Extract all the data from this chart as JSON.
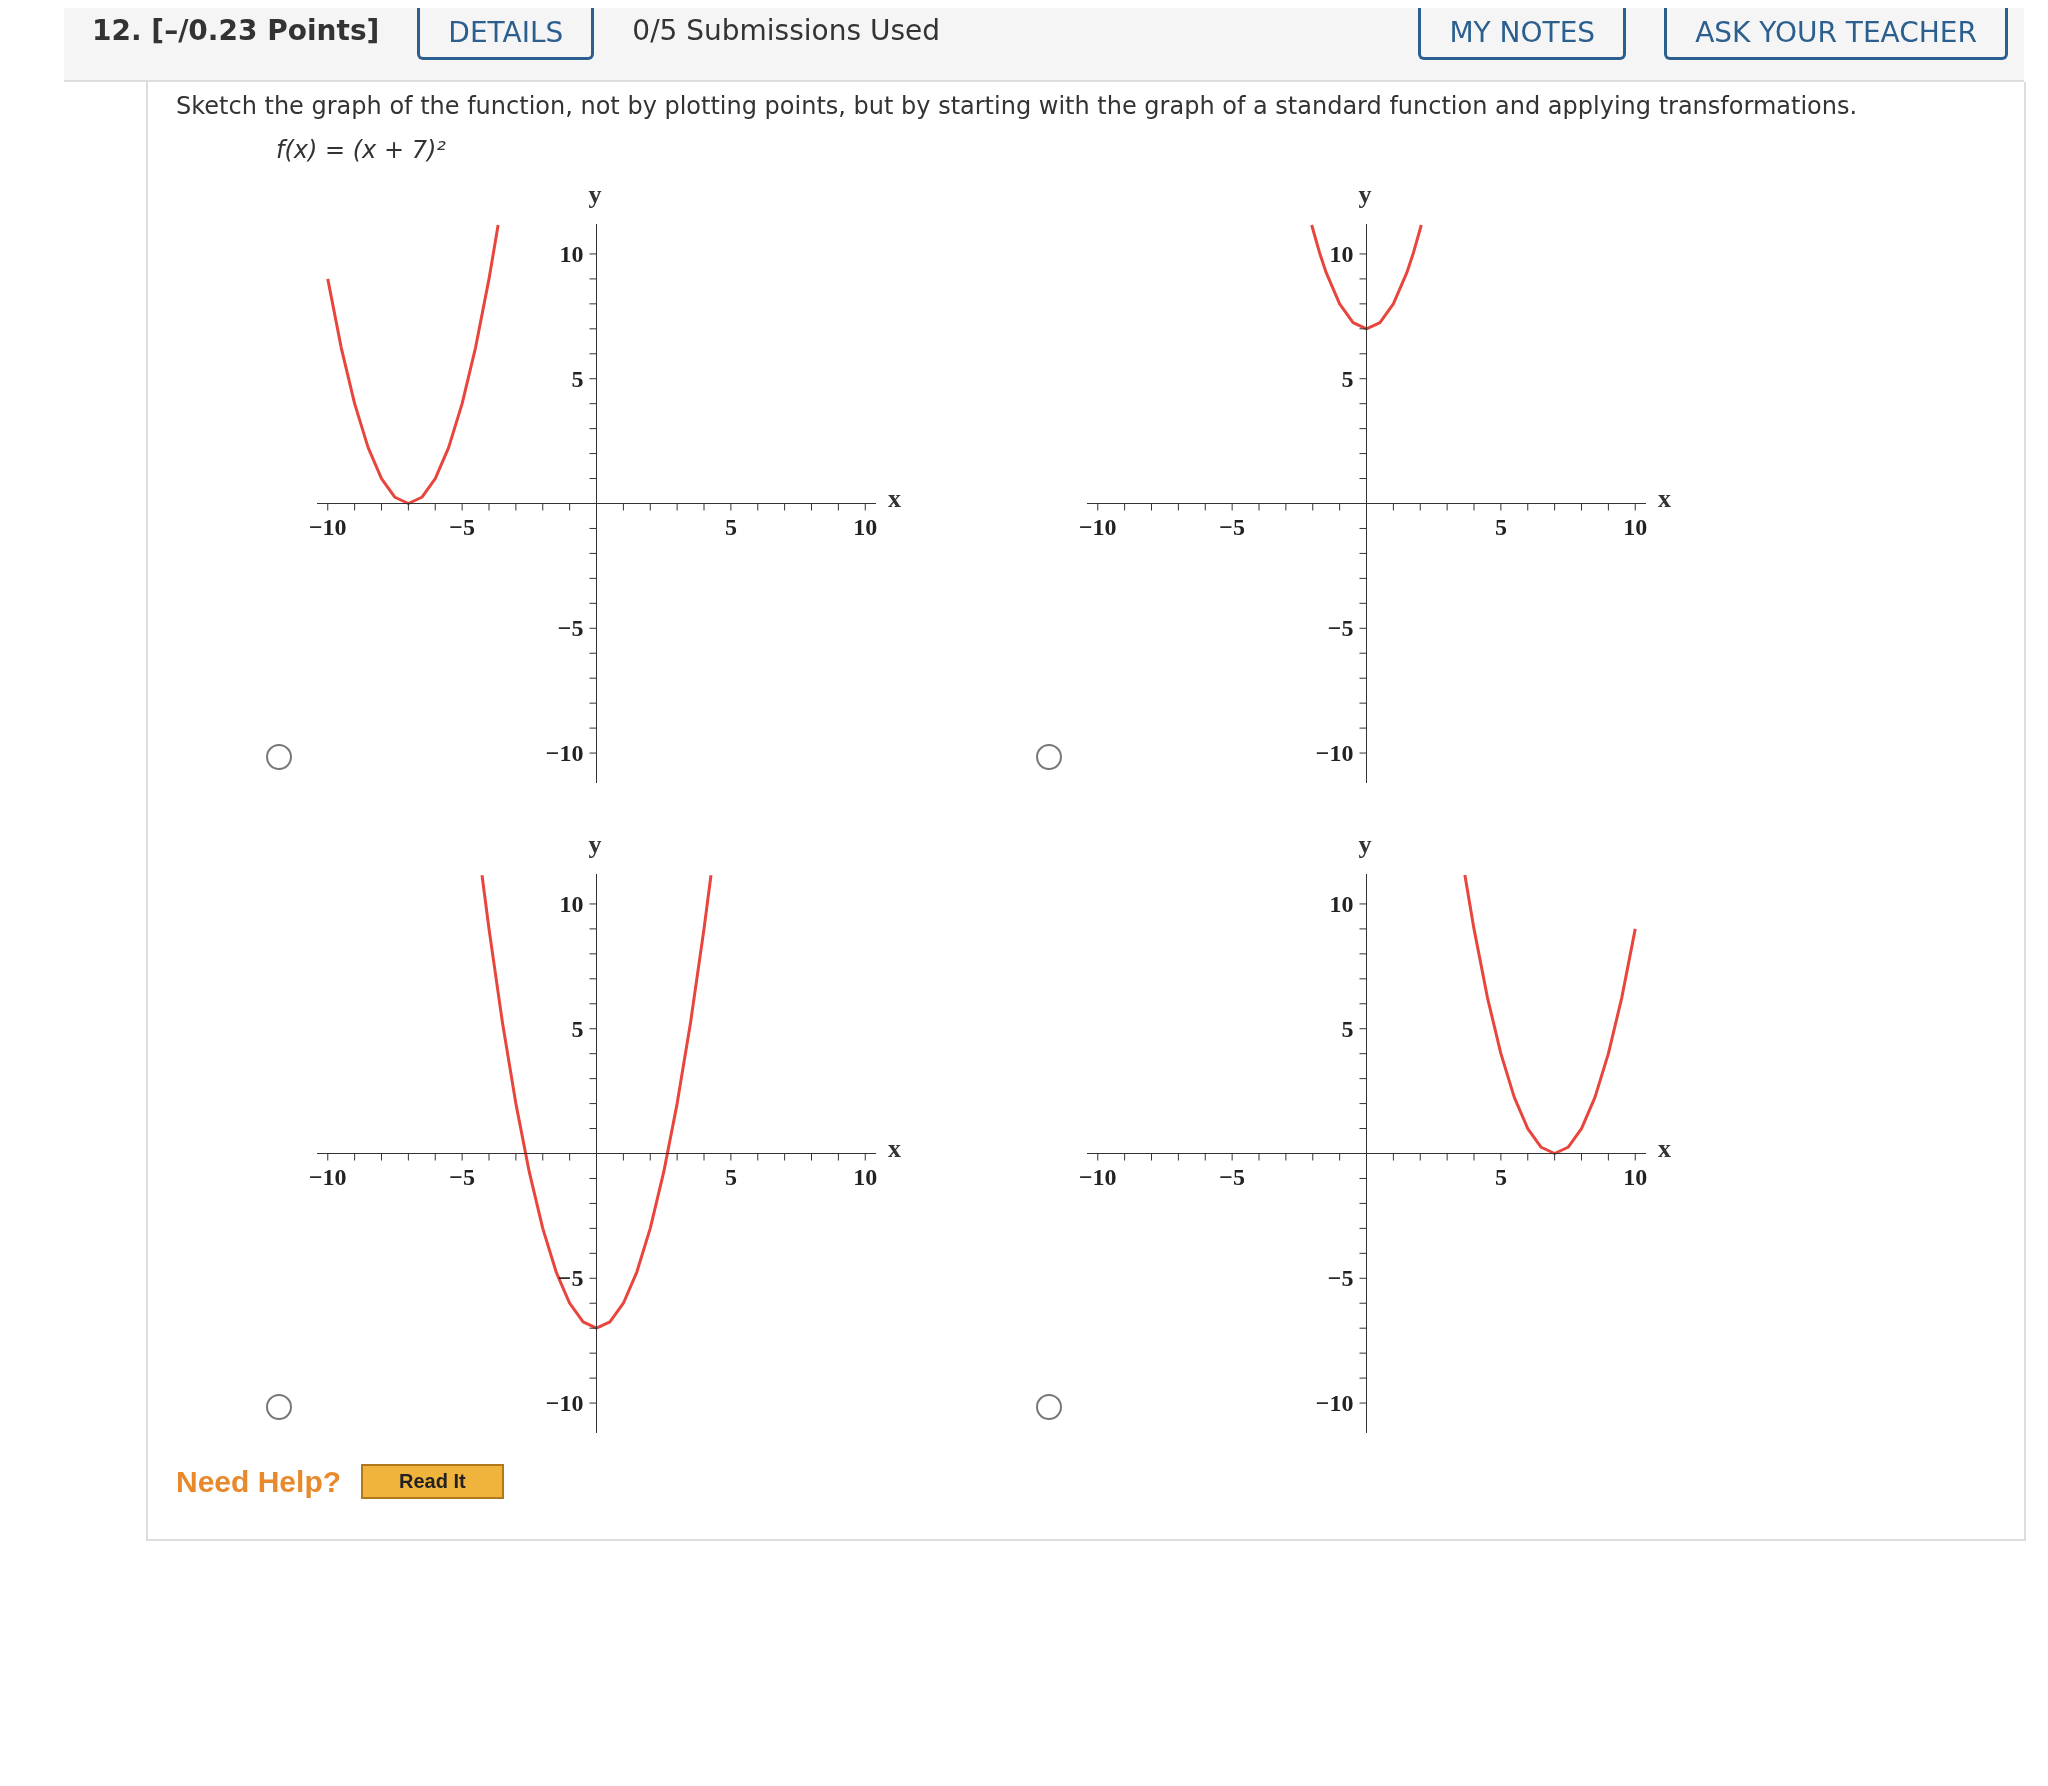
{
  "chart_data": [
    {
      "type": "line",
      "title": "Sketch the graph of the function, not by plotting points, but by starting with the graph of a standard function and applying transformations.",
      "subtitle": "f(x) = (x + 7)²",
      "annotations": [
        "12. [–/0.23 Points]",
        "DETAILS",
        "0/5 Submissions Used",
        "MY NOTES",
        "ASK YOUR TEACHER",
        "Need Help?",
        "Read It"
      ],
      "xlabel": "x",
      "ylabel": "y",
      "xlim": [
        -10.4,
        10.4
      ],
      "ylim": [
        -11.2,
        11.2
      ],
      "xticks": [
        {
          "value": -10,
          "label": "−10"
        },
        {
          "value": -9,
          "label": null
        },
        {
          "value": -8,
          "label": null
        },
        {
          "value": -7,
          "label": null
        },
        {
          "value": -6,
          "label": null
        },
        {
          "value": -5,
          "label": "−5"
        },
        {
          "value": -4,
          "label": null
        },
        {
          "value": -3,
          "label": null
        },
        {
          "value": -2,
          "label": null
        },
        {
          "value": -1,
          "label": null
        },
        {
          "value": 1,
          "label": null
        },
        {
          "value": 2,
          "label": null
        },
        {
          "value": 3,
          "label": null
        },
        {
          "value": 4,
          "label": null
        },
        {
          "value": 5,
          "label": "5"
        },
        {
          "value": 6,
          "label": null
        },
        {
          "value": 7,
          "label": null
        },
        {
          "value": 8,
          "label": null
        },
        {
          "value": 9,
          "label": null
        },
        {
          "value": 10,
          "label": "10"
        }
      ],
      "yticks": [
        {
          "value": -10,
          "label": "−10"
        },
        {
          "value": -9,
          "label": null
        },
        {
          "value": -8,
          "label": null
        },
        {
          "value": -7,
          "label": null
        },
        {
          "value": -6,
          "label": null
        },
        {
          "value": -5,
          "label": "−5"
        },
        {
          "value": -4,
          "label": null
        },
        {
          "value": -3,
          "label": null
        },
        {
          "value": -2,
          "label": null
        },
        {
          "value": -1,
          "label": null
        },
        {
          "value": 1,
          "label": null
        },
        {
          "value": 2,
          "label": null
        },
        {
          "value": 3,
          "label": null
        },
        {
          "value": 4,
          "label": null
        },
        {
          "value": 5,
          "label": "5"
        },
        {
          "value": 6,
          "label": null
        },
        {
          "value": 7,
          "label": null
        },
        {
          "value": 8,
          "label": null
        },
        {
          "value": 9,
          "label": null
        },
        {
          "value": 10,
          "label": "10"
        }
      ],
      "marker": "none",
      "series": [
        {
          "color": "#e8453c",
          "x": [
            -10,
            -9.5,
            -9,
            -8.5,
            -8,
            -7.5,
            -7,
            -6.5,
            -6,
            -5.5,
            -5,
            -4.5,
            -4,
            -3.66
          ],
          "values": [
            9,
            6.25,
            4,
            2.25,
            1,
            0.25,
            0,
            0.25,
            1,
            2.25,
            4,
            6.25,
            9,
            11.16
          ]
        }
      ]
    },
    {
      "type": "line",
      "xlabel": "x",
      "ylabel": "y",
      "xlim": [
        -10.4,
        10.4
      ],
      "ylim": [
        -11.2,
        11.2
      ],
      "xticks": [
        {
          "value": -10,
          "label": "−10"
        },
        {
          "value": -9,
          "label": null
        },
        {
          "value": -8,
          "label": null
        },
        {
          "value": -7,
          "label": null
        },
        {
          "value": -6,
          "label": null
        },
        {
          "value": -5,
          "label": "−5"
        },
        {
          "value": -4,
          "label": null
        },
        {
          "value": -3,
          "label": null
        },
        {
          "value": -2,
          "label": null
        },
        {
          "value": -1,
          "label": null
        },
        {
          "value": 1,
          "label": null
        },
        {
          "value": 2,
          "label": null
        },
        {
          "value": 3,
          "label": null
        },
        {
          "value": 4,
          "label": null
        },
        {
          "value": 5,
          "label": "5"
        },
        {
          "value": 6,
          "label": null
        },
        {
          "value": 7,
          "label": null
        },
        {
          "value": 8,
          "label": null
        },
        {
          "value": 9,
          "label": null
        },
        {
          "value": 10,
          "label": "10"
        }
      ],
      "yticks": [
        {
          "value": -10,
          "label": "−10"
        },
        {
          "value": -9,
          "label": null
        },
        {
          "value": -8,
          "label": null
        },
        {
          "value": -7,
          "label": null
        },
        {
          "value": -6,
          "label": null
        },
        {
          "value": -5,
          "label": "−5"
        },
        {
          "value": -4,
          "label": null
        },
        {
          "value": -3,
          "label": null
        },
        {
          "value": -2,
          "label": null
        },
        {
          "value": -1,
          "label": null
        },
        {
          "value": 1,
          "label": null
        },
        {
          "value": 2,
          "label": null
        },
        {
          "value": 3,
          "label": null
        },
        {
          "value": 4,
          "label": null
        },
        {
          "value": 5,
          "label": "5"
        },
        {
          "value": 6,
          "label": null
        },
        {
          "value": 7,
          "label": null
        },
        {
          "value": 8,
          "label": null
        },
        {
          "value": 9,
          "label": null
        },
        {
          "value": 10,
          "label": "10"
        }
      ],
      "marker": "none",
      "series": [
        {
          "color": "#e8453c",
          "x": [
            -2.04,
            -1.75,
            -1.5,
            -1,
            -0.5,
            0,
            0.5,
            1,
            1.5,
            1.75,
            2.04
          ],
          "values": [
            11.16,
            10.06,
            9.25,
            8,
            7.25,
            7,
            7.25,
            8,
            9.25,
            10.06,
            11.16
          ]
        }
      ]
    },
    {
      "type": "line",
      "xlabel": "x",
      "ylabel": "y",
      "xlim": [
        -10.4,
        10.4
      ],
      "ylim": [
        -11.2,
        11.2
      ],
      "xticks": [
        {
          "value": -10,
          "label": "−10"
        },
        {
          "value": -9,
          "label": null
        },
        {
          "value": -8,
          "label": null
        },
        {
          "value": -7,
          "label": null
        },
        {
          "value": -6,
          "label": null
        },
        {
          "value": -5,
          "label": "−5"
        },
        {
          "value": -4,
          "label": null
        },
        {
          "value": -3,
          "label": null
        },
        {
          "value": -2,
          "label": null
        },
        {
          "value": -1,
          "label": null
        },
        {
          "value": 1,
          "label": null
        },
        {
          "value": 2,
          "label": null
        },
        {
          "value": 3,
          "label": null
        },
        {
          "value": 4,
          "label": null
        },
        {
          "value": 5,
          "label": "5"
        },
        {
          "value": 6,
          "label": null
        },
        {
          "value": 7,
          "label": null
        },
        {
          "value": 8,
          "label": null
        },
        {
          "value": 9,
          "label": null
        },
        {
          "value": 10,
          "label": "10"
        }
      ],
      "yticks": [
        {
          "value": -10,
          "label": "−10"
        },
        {
          "value": -9,
          "label": null
        },
        {
          "value": -8,
          "label": null
        },
        {
          "value": -7,
          "label": null
        },
        {
          "value": -6,
          "label": null
        },
        {
          "value": -5,
          "label": "−5"
        },
        {
          "value": -4,
          "label": null
        },
        {
          "value": -3,
          "label": null
        },
        {
          "value": -2,
          "label": null
        },
        {
          "value": -1,
          "label": null
        },
        {
          "value": 1,
          "label": null
        },
        {
          "value": 2,
          "label": null
        },
        {
          "value": 3,
          "label": null
        },
        {
          "value": 4,
          "label": null
        },
        {
          "value": 5,
          "label": "5"
        },
        {
          "value": 6,
          "label": null
        },
        {
          "value": 7,
          "label": null
        },
        {
          "value": 8,
          "label": null
        },
        {
          "value": 9,
          "label": null
        },
        {
          "value": 10,
          "label": "10"
        }
      ],
      "marker": "none",
      "series": [
        {
          "color": "#e8453c",
          "x": [
            -4.26,
            -4,
            -3.5,
            -3,
            -2.5,
            -2,
            -1.5,
            -1,
            -0.5,
            0,
            0.5,
            1,
            1.5,
            2,
            2.5,
            3,
            3.5,
            4,
            4.26
          ],
          "values": [
            11.15,
            9,
            5.25,
            2,
            -0.75,
            -3,
            -4.75,
            -6,
            -6.75,
            -7,
            -6.75,
            -6,
            -4.75,
            -3,
            -0.75,
            2,
            5.25,
            9,
            11.15
          ]
        }
      ]
    },
    {
      "type": "line",
      "xlabel": "x",
      "ylabel": "y",
      "xlim": [
        -10.4,
        10.4
      ],
      "ylim": [
        -11.2,
        11.2
      ],
      "xticks": [
        {
          "value": -10,
          "label": "−10"
        },
        {
          "value": -9,
          "label": null
        },
        {
          "value": -8,
          "label": null
        },
        {
          "value": -7,
          "label": null
        },
        {
          "value": -6,
          "label": null
        },
        {
          "value": -5,
          "label": "−5"
        },
        {
          "value": -4,
          "label": null
        },
        {
          "value": -3,
          "label": null
        },
        {
          "value": -2,
          "label": null
        },
        {
          "value": -1,
          "label": null
        },
        {
          "value": 1,
          "label": null
        },
        {
          "value": 2,
          "label": null
        },
        {
          "value": 3,
          "label": null
        },
        {
          "value": 4,
          "label": null
        },
        {
          "value": 5,
          "label": "5"
        },
        {
          "value": 6,
          "label": null
        },
        {
          "value": 7,
          "label": null
        },
        {
          "value": 8,
          "label": null
        },
        {
          "value": 9,
          "label": null
        },
        {
          "value": 10,
          "label": "10"
        }
      ],
      "yticks": [
        {
          "value": -10,
          "label": "−10"
        },
        {
          "value": -9,
          "label": null
        },
        {
          "value": -8,
          "label": null
        },
        {
          "value": -7,
          "label": null
        },
        {
          "value": -6,
          "label": null
        },
        {
          "value": -5,
          "label": "−5"
        },
        {
          "value": -4,
          "label": null
        },
        {
          "value": -3,
          "label": null
        },
        {
          "value": -2,
          "label": null
        },
        {
          "value": -1,
          "label": null
        },
        {
          "value": 1,
          "label": null
        },
        {
          "value": 2,
          "label": null
        },
        {
          "value": 3,
          "label": null
        },
        {
          "value": 4,
          "label": null
        },
        {
          "value": 5,
          "label": "5"
        },
        {
          "value": 6,
          "label": null
        },
        {
          "value": 7,
          "label": null
        },
        {
          "value": 8,
          "label": null
        },
        {
          "value": 9,
          "label": null
        },
        {
          "value": 10,
          "label": "10"
        }
      ],
      "marker": "none",
      "series": [
        {
          "color": "#e8453c",
          "x": [
            3.66,
            4,
            4.5,
            5,
            5.5,
            6,
            6.5,
            7,
            7.5,
            8,
            8.5,
            9,
            9.5,
            10
          ],
          "values": [
            11.16,
            9,
            6.25,
            4,
            2.25,
            1,
            0.25,
            0,
            0.25,
            1,
            2.25,
            4,
            6.25,
            9
          ]
        }
      ]
    }
  ]
}
